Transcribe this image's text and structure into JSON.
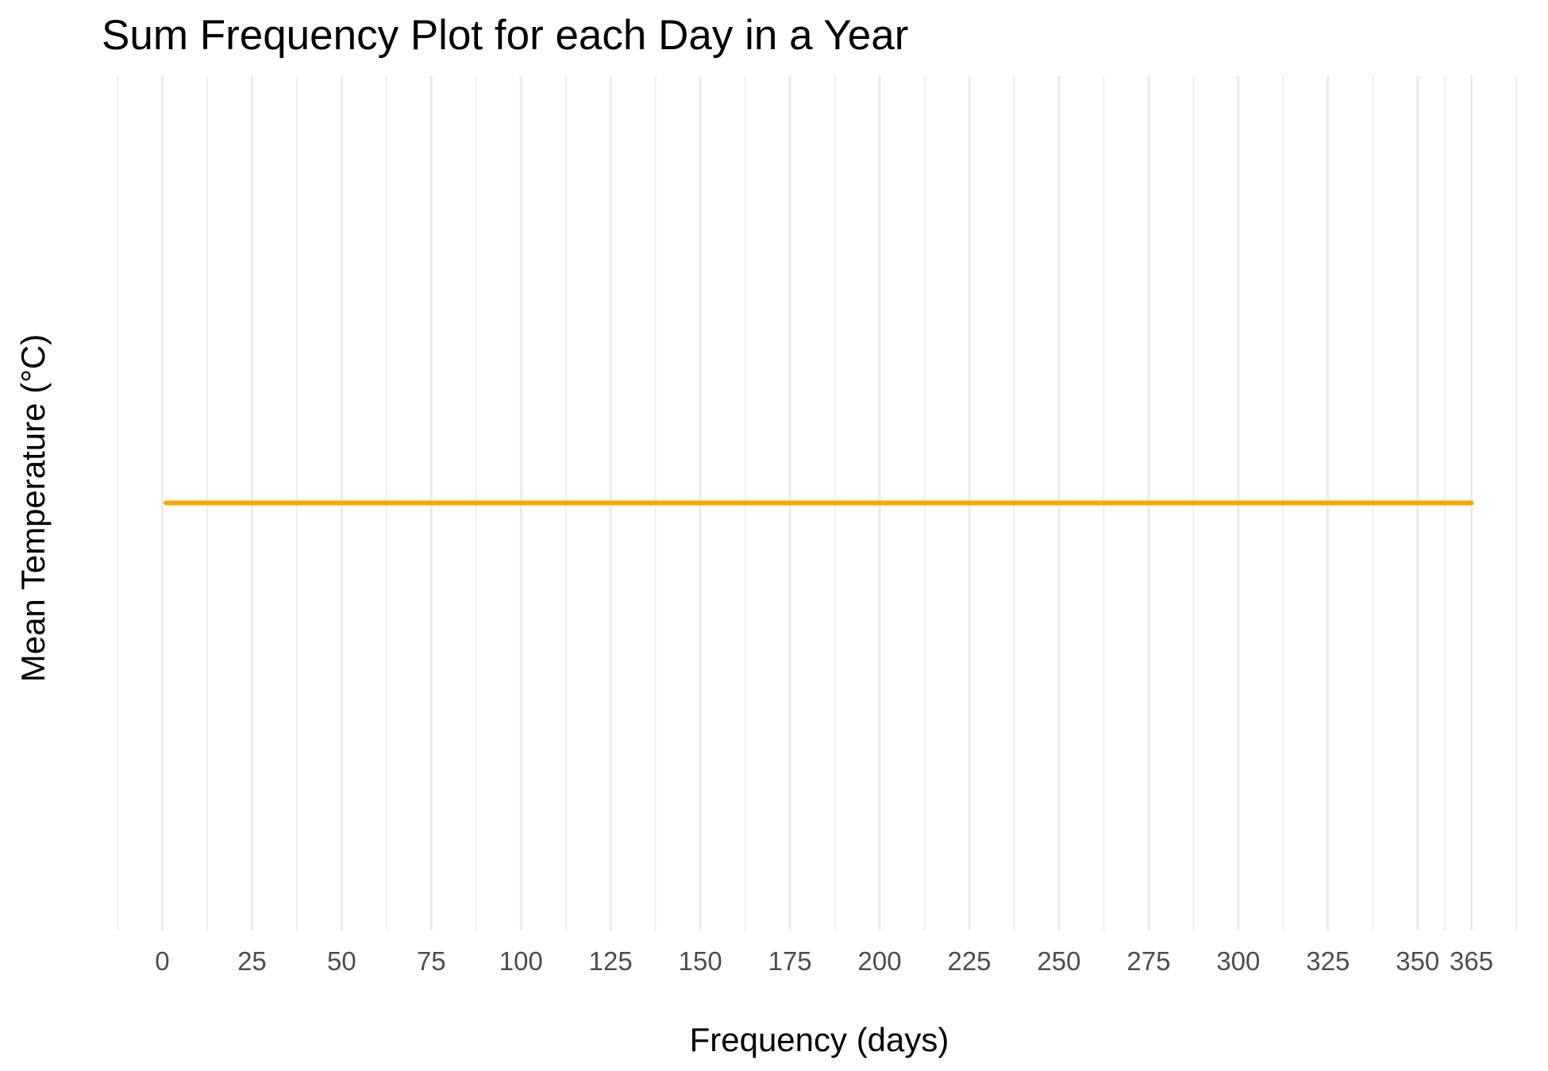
{
  "chart_data": {
    "type": "line",
    "title": "Sum Frequency Plot for each Day in a Year",
    "xlabel": "Frequency (days)",
    "ylabel": "Mean Temperature (°C)",
    "xlim": [
      -12.5,
      377.5
    ],
    "x_ticks": [
      0,
      25,
      50,
      75,
      100,
      125,
      150,
      175,
      200,
      225,
      250,
      275,
      300,
      325,
      350,
      365
    ],
    "x_tick_labels": [
      "0",
      "25",
      "50",
      "75",
      "100",
      "125",
      "150",
      "175",
      "200",
      "225",
      "250",
      "275",
      "300",
      "325",
      "350",
      "365"
    ],
    "x_minor_ticks": [
      -12.5,
      12.5,
      37.5,
      62.5,
      87.5,
      112.5,
      137.5,
      162.5,
      187.5,
      212.5,
      237.5,
      262.5,
      287.5,
      312.5,
      337.5,
      357.5,
      377.5
    ],
    "grid": "vertical-only",
    "legend": "none",
    "series": [
      {
        "color": "#ffa500",
        "x": [
          1,
          365
        ],
        "y": [
          0,
          0
        ]
      }
    ],
    "ylim": [
      -1,
      1
    ]
  }
}
